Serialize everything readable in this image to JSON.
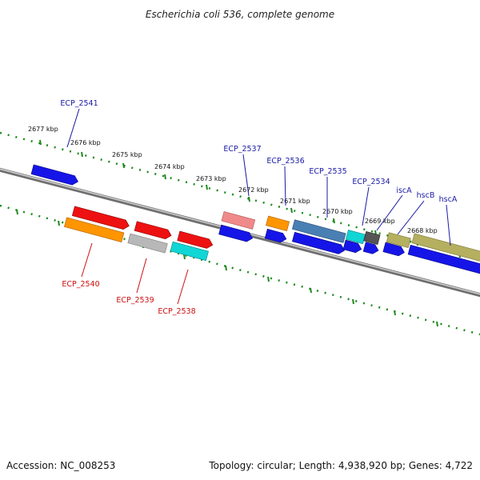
{
  "title": "Escherichia coli 536, complete genome",
  "footer": {
    "accession": "Accession: NC_008253",
    "summary": "Topology: circular; Length: 4,938,920 bp; Genes: 4,722"
  },
  "colors": {
    "forward_label": "#1a1aa6",
    "reverse_label": "#cc1111",
    "tick": "#1f8a1f",
    "backbone": "#8a8a8a",
    "blue": "#1515e8",
    "red": "#ee1111",
    "orange": "#ff9500",
    "grey": "#b8b8b8",
    "dark_grey": "#555555",
    "cyan": "#11d6d6",
    "pink": "#f08a8a",
    "steel_blue": "#4a7fb3",
    "olive": "#b5b060"
  },
  "kbp_labels": [
    "2677 kbp",
    "2676 kbp",
    "2675 kbp",
    "2674 kbp",
    "2673 kbp",
    "2672 kbp",
    "2671 kbp",
    "2670 kbp",
    "2669 kbp",
    "2668 kbp"
  ],
  "forward_genes": [
    "ECP_2541",
    "ECP_2537",
    "ECP_2536",
    "ECP_2535",
    "ECP_2534",
    "iscA",
    "hscB",
    "hscA"
  ],
  "reverse_genes": [
    "ECP_2540",
    "ECP_2539",
    "ECP_2538"
  ]
}
